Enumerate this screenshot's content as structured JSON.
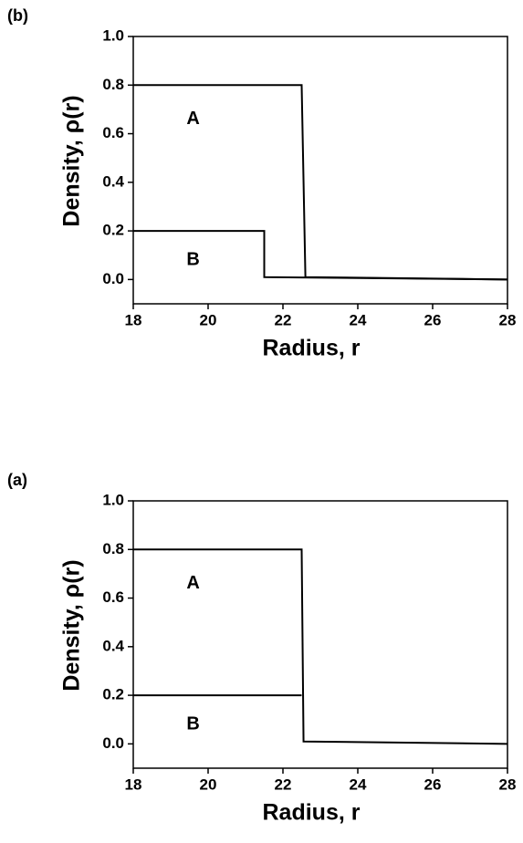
{
  "chart_data": [
    {
      "type": "line",
      "panel_label": "(b)",
      "xlabel": "Radius, r",
      "ylabel": "Density, ρ(r)",
      "xlim": [
        18,
        28
      ],
      "ylim": [
        -0.1,
        1.0
      ],
      "xticks": [
        18,
        20,
        22,
        24,
        26,
        28
      ],
      "yticks": [
        {
          "value": 0,
          "label": "0.0"
        },
        {
          "value": 0.2,
          "label": "0.2"
        },
        {
          "value": 0.4,
          "label": "0.4"
        },
        {
          "value": 0.6,
          "label": "0.6"
        },
        {
          "value": 0.8,
          "label": "0.8"
        },
        {
          "value": 1,
          "label": "1.0"
        }
      ],
      "series": [
        {
          "name": "A",
          "color": "#000000",
          "x": [
            18,
            22.5,
            22.6,
            28
          ],
          "values": [
            0.8,
            0.8,
            0.01,
            0.0
          ]
        },
        {
          "name": "B",
          "color": "#000000",
          "x": [
            18,
            21.5,
            21.5,
            28
          ],
          "values": [
            0.2,
            0.2,
            0.01,
            0.0
          ]
        }
      ]
    },
    {
      "type": "line",
      "panel_label": "(a)",
      "xlabel": "Radius, r",
      "ylabel": "Density, ρ(r)",
      "xlim": [
        18,
        28
      ],
      "ylim": [
        -0.1,
        1.0
      ],
      "xticks": [
        18,
        20,
        22,
        24,
        26,
        28
      ],
      "yticks": [
        {
          "value": 0,
          "label": "0.0"
        },
        {
          "value": 0.2,
          "label": "0.2"
        },
        {
          "value": 0.4,
          "label": "0.4"
        },
        {
          "value": 0.6,
          "label": "0.6"
        },
        {
          "value": 0.8,
          "label": "0.8"
        },
        {
          "value": 1,
          "label": "1.0"
        }
      ],
      "series": [
        {
          "name": "A",
          "color": "#000000",
          "x": [
            18,
            22.5,
            22.55,
            28
          ],
          "values": [
            0.8,
            0.8,
            0.01,
            0.0
          ]
        },
        {
          "name": "B",
          "color": "#000000",
          "x": [
            18,
            22.5
          ],
          "values": [
            0.2,
            0.2
          ]
        }
      ]
    }
  ]
}
